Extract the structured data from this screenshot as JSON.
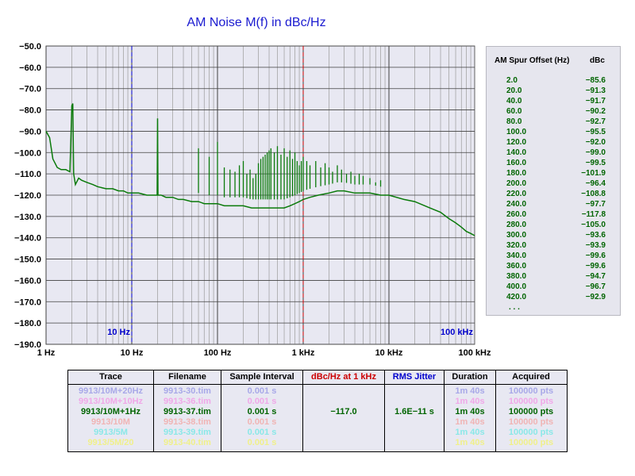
{
  "chart_data": {
    "type": "line",
    "title": "AM Noise M(f) in dBc/Hz",
    "xscale": "log",
    "xlim": [
      1,
      100000
    ],
    "ylim": [
      -190,
      -50
    ],
    "x_tick_labels": [
      "1 Hz",
      "10 Hz",
      "100 Hz",
      "1 kHz",
      "10 kHz",
      "100 kHz"
    ],
    "y_tick_labels": [
      "-50.0",
      "-60.0",
      "-70.0",
      "-80.0",
      "-90.0",
      "-100.0",
      "-110.0",
      "-120.0",
      "-130.0",
      "-140.0",
      "-150.0",
      "-160.0",
      "-170.0",
      "-180.0",
      "-190.0"
    ],
    "markers": [
      {
        "label": "10 Hz",
        "x": 10,
        "color": "#0000cc"
      },
      {
        "label": "",
        "x": 1000,
        "color": "#cc0000"
      },
      {
        "label": "100 kHz",
        "x": 100000,
        "color": "#0000cc"
      }
    ],
    "series": [
      {
        "color": "#0a7a0a",
        "x": [
          1,
          1.1,
          1.2,
          1.35,
          1.5,
          1.7,
          1.9,
          2.0,
          2.05,
          2.1,
          2.2,
          2.4,
          2.6,
          3,
          3.5,
          4,
          5,
          6,
          7,
          8,
          9,
          10,
          12,
          15,
          18,
          19.8,
          20,
          20.2,
          22,
          25,
          30,
          35,
          40,
          50,
          60,
          70,
          80,
          100,
          120,
          150,
          200,
          250,
          300,
          350,
          400,
          500,
          600,
          700,
          800,
          900,
          1000,
          1200,
          1500,
          2000,
          2500,
          3000,
          4000,
          5000,
          6000,
          8000,
          10000,
          15000,
          20000,
          30000,
          40000,
          50000,
          60000,
          70000,
          80000,
          90000,
          100000
        ],
        "y": [
          -90,
          -93,
          -103,
          -107,
          -108,
          -108,
          -109,
          -78,
          -77,
          -110,
          -115,
          -112,
          -113,
          -114,
          -115,
          -116,
          -117,
          -117,
          -118,
          -118,
          -119,
          -119,
          -119,
          -120,
          -120,
          -120,
          -84,
          -120,
          -120,
          -121,
          -121,
          -122,
          -122,
          -123,
          -123,
          -124,
          -124,
          -124,
          -125,
          -125,
          -125,
          -126,
          -126,
          -126,
          -126,
          -126,
          -126,
          -125,
          -124,
          -123,
          -122,
          -121,
          -120,
          -119,
          -118,
          -118,
          -119,
          -119,
          -119,
          -120,
          -120,
          -122,
          -123,
          -126,
          -128,
          -131,
          -133,
          -135,
          -137,
          -138,
          -139
        ]
      }
    ],
    "spikes": [
      {
        "x": 60,
        "top": -98
      },
      {
        "x": 80,
        "top": -102
      },
      {
        "x": 100,
        "top": -95
      },
      {
        "x": 120,
        "top": -107
      },
      {
        "x": 140,
        "top": -108
      },
      {
        "x": 160,
        "top": -109
      },
      {
        "x": 180,
        "top": -106
      },
      {
        "x": 200,
        "top": -104
      },
      {
        "x": 220,
        "top": -110
      },
      {
        "x": 240,
        "top": -108
      },
      {
        "x": 260,
        "top": -112
      },
      {
        "x": 280,
        "top": -110
      },
      {
        "x": 300,
        "top": -105
      },
      {
        "x": 320,
        "top": -103
      },
      {
        "x": 340,
        "top": -102
      },
      {
        "x": 360,
        "top": -101
      },
      {
        "x": 380,
        "top": -100
      },
      {
        "x": 400,
        "top": -99
      },
      {
        "x": 420,
        "top": -98
      },
      {
        "x": 460,
        "top": -100
      },
      {
        "x": 500,
        "top": -97
      },
      {
        "x": 550,
        "top": -101
      },
      {
        "x": 600,
        "top": -98
      },
      {
        "x": 650,
        "top": -102
      },
      {
        "x": 700,
        "top": -99
      },
      {
        "x": 750,
        "top": -103
      },
      {
        "x": 800,
        "top": -100
      },
      {
        "x": 850,
        "top": -104
      },
      {
        "x": 900,
        "top": -106
      },
      {
        "x": 950,
        "top": -104
      },
      {
        "x": 1000,
        "top": -102
      },
      {
        "x": 1100,
        "top": -104
      },
      {
        "x": 1200,
        "top": -106
      },
      {
        "x": 1400,
        "top": -104
      },
      {
        "x": 1600,
        "top": -107
      },
      {
        "x": 1800,
        "top": -105
      },
      {
        "x": 2000,
        "top": -107
      },
      {
        "x": 2200,
        "top": -109
      },
      {
        "x": 2500,
        "top": -106
      },
      {
        "x": 2800,
        "top": -108
      },
      {
        "x": 3200,
        "top": -110
      },
      {
        "x": 3600,
        "top": -109
      },
      {
        "x": 4000,
        "top": -111
      },
      {
        "x": 4500,
        "top": -110
      },
      {
        "x": 5000,
        "top": -111
      },
      {
        "x": 6000,
        "top": -112
      },
      {
        "x": 7000,
        "top": -114
      },
      {
        "x": 8000,
        "top": -113
      }
    ]
  },
  "spur_table": {
    "header_offset": "AM Spur Offset (Hz)",
    "header_dbc": "dBc",
    "rows": [
      {
        "offset": "2.0",
        "dbc": "−85.6"
      },
      {
        "offset": "20.0",
        "dbc": "−91.3"
      },
      {
        "offset": "40.0",
        "dbc": "−91.7"
      },
      {
        "offset": "60.0",
        "dbc": "−90.2"
      },
      {
        "offset": "80.0",
        "dbc": "−92.7"
      },
      {
        "offset": "100.0",
        "dbc": "−95.5"
      },
      {
        "offset": "120.0",
        "dbc": "−92.0"
      },
      {
        "offset": "140.0",
        "dbc": "−99.0"
      },
      {
        "offset": "160.0",
        "dbc": "−99.5"
      },
      {
        "offset": "180.0",
        "dbc": "−101.9"
      },
      {
        "offset": "200.0",
        "dbc": "−96.4"
      },
      {
        "offset": "220.0",
        "dbc": "−108.8"
      },
      {
        "offset": "240.0",
        "dbc": "−97.7"
      },
      {
        "offset": "260.0",
        "dbc": "−117.8"
      },
      {
        "offset": "280.0",
        "dbc": "−105.0"
      },
      {
        "offset": "300.0",
        "dbc": "−93.6"
      },
      {
        "offset": "320.0",
        "dbc": "−93.9"
      },
      {
        "offset": "340.0",
        "dbc": "−99.6"
      },
      {
        "offset": "360.0",
        "dbc": "−99.6"
      },
      {
        "offset": "380.0",
        "dbc": "−94.7"
      },
      {
        "offset": "400.0",
        "dbc": "−96.7"
      },
      {
        "offset": "420.0",
        "dbc": "−92.9"
      }
    ],
    "more": ". . ."
  },
  "trace_table": {
    "headers": [
      {
        "label": "Trace",
        "color": "#000000"
      },
      {
        "label": "Filename",
        "color": "#000000"
      },
      {
        "label": "Sample Interval",
        "color": "#000000"
      },
      {
        "label": "dBc/Hz at 1 kHz",
        "color": "#cc0000"
      },
      {
        "label": "RMS Jitter",
        "color": "#0000cc"
      },
      {
        "label": "Duration",
        "color": "#000000"
      },
      {
        "label": "Acquired",
        "color": "#000000"
      }
    ],
    "rows": [
      {
        "color": "#a8a8e8",
        "cells": [
          "9913/10M+20Hz",
          "9913-30.tim",
          "0.001 s",
          "",
          "",
          "1m 40s",
          "100000 pts"
        ]
      },
      {
        "color": "#f0a8e8",
        "cells": [
          "9913/10M+10Hz",
          "9913-36.tim",
          "0.001 s",
          "",
          "",
          "1m 40s",
          "100000 pts"
        ]
      },
      {
        "color": "#006400",
        "cells": [
          "9913/10M+1Hz",
          "9913-37.tim",
          "0.001 s",
          "−117.0",
          "1.6E−11 s",
          "1m 40s",
          "100000 pts"
        ]
      },
      {
        "color": "#f0b4b4",
        "cells": [
          "9913/10M",
          "9913-38.tim",
          "0.001 s",
          "",
          "",
          "1m 40s",
          "100000 pts"
        ]
      },
      {
        "color": "#8ae8e8",
        "cells": [
          "9913/5M",
          "9913-39.tim",
          "0.001 s",
          "",
          "",
          "1m 40s",
          "100000 pts"
        ]
      },
      {
        "color": "#f0f08a",
        "cells": [
          "9913/5M/20",
          "9913-40.tim",
          "0.001 s",
          "",
          "",
          "1m 40s",
          "100000 pts"
        ]
      }
    ]
  }
}
